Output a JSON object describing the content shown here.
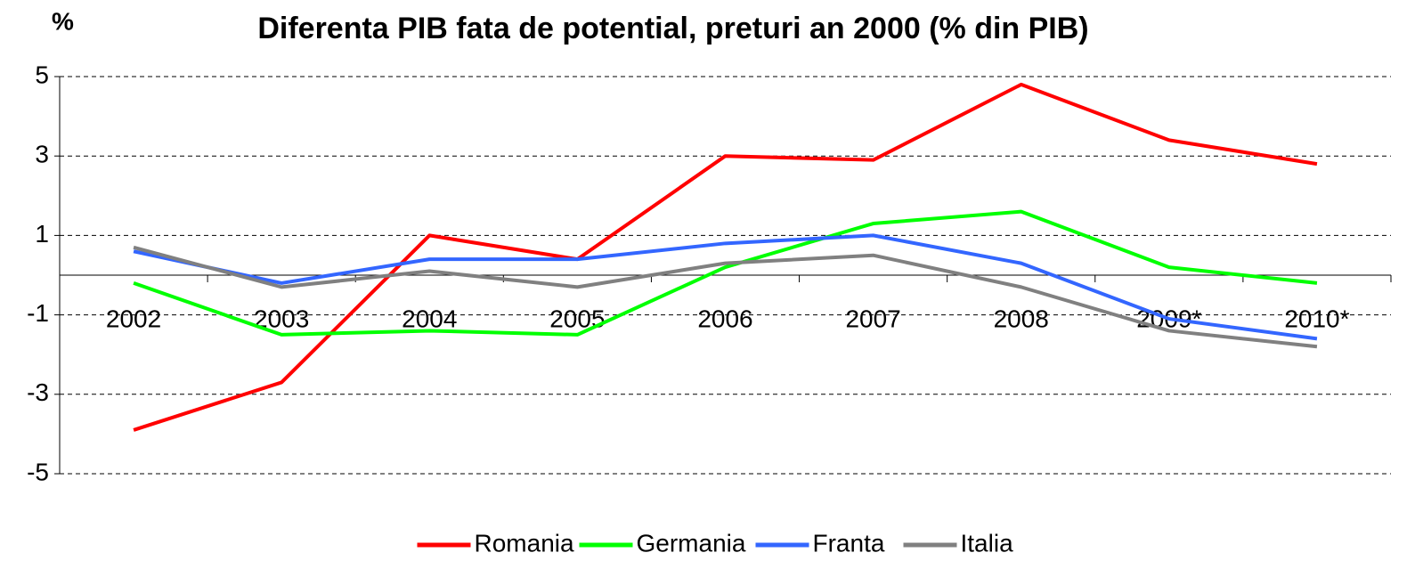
{
  "chart_data": {
    "type": "line",
    "title": "Diferenta PIB fata de potential, preturi an 2000 (% din PIB)",
    "y_label": "%",
    "categories": [
      "2002",
      "2003",
      "2004",
      "2005",
      "2006",
      "2007",
      "2008",
      "2009*",
      "2010*"
    ],
    "series": [
      {
        "name": "Romania",
        "color": "#ff0000",
        "values": [
          -3.9,
          -2.7,
          1.0,
          0.4,
          3.0,
          2.9,
          4.8,
          3.4,
          2.8
        ]
      },
      {
        "name": "Germania",
        "color": "#00ff00",
        "values": [
          -0.2,
          -1.5,
          -1.4,
          -1.5,
          0.2,
          1.3,
          1.6,
          0.2,
          -0.2
        ]
      },
      {
        "name": "Franta",
        "color": "#3366ff",
        "values": [
          0.6,
          -0.2,
          0.4,
          0.4,
          0.8,
          1.0,
          0.3,
          -1.1,
          -1.6
        ]
      },
      {
        "name": "Italia",
        "color": "#808080",
        "values": [
          0.7,
          -0.3,
          0.1,
          -0.3,
          0.3,
          0.5,
          -0.3,
          -1.4,
          -1.8
        ]
      }
    ],
    "ylim": [
      -5,
      5
    ],
    "yticks": [
      -5,
      -3,
      -1,
      1,
      3,
      5
    ],
    "grid": true,
    "legend": "bottom"
  }
}
